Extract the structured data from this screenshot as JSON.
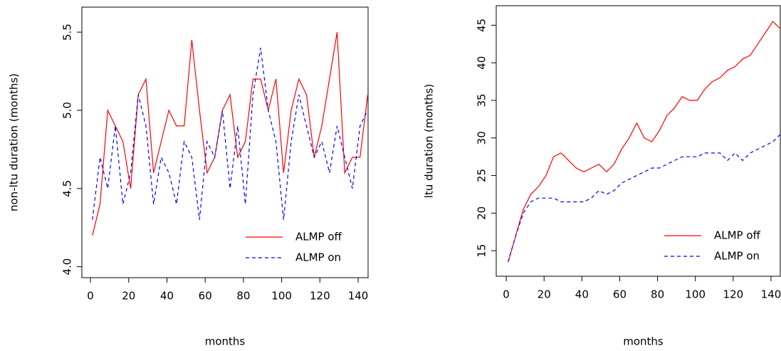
{
  "chart_data": [
    {
      "type": "line",
      "xlabel": "months",
      "ylabel": "non-ltu duration (months)",
      "x": [
        1,
        5,
        9,
        13,
        17,
        21,
        25,
        29,
        33,
        37,
        41,
        45,
        49,
        53,
        57,
        61,
        65,
        69,
        73,
        77,
        81,
        85,
        89,
        93,
        97,
        101,
        105,
        109,
        113,
        117,
        121,
        125,
        129,
        133,
        137,
        141,
        145
      ],
      "series": [
        {
          "name": "ALMP off",
          "color": "#ff0000",
          "linestyle": "solid",
          "values": [
            4.2,
            4.4,
            5.0,
            4.9,
            4.8,
            4.5,
            5.1,
            5.2,
            4.6,
            4.8,
            5.0,
            4.9,
            4.9,
            5.45,
            5.0,
            4.6,
            4.7,
            5.0,
            5.1,
            4.7,
            4.8,
            5.2,
            5.2,
            5.0,
            5.2,
            4.6,
            5.0,
            5.2,
            5.1,
            4.7,
            4.9,
            5.2,
            5.5,
            4.6,
            4.7,
            4.7,
            5.1
          ]
        },
        {
          "name": "ALMP on",
          "color": "#0000ff",
          "linestyle": "dashed",
          "values": [
            4.3,
            4.7,
            4.5,
            4.9,
            4.4,
            4.6,
            5.1,
            4.9,
            4.4,
            4.7,
            4.6,
            4.4,
            4.8,
            4.7,
            4.3,
            4.8,
            4.7,
            5.0,
            4.5,
            4.9,
            4.4,
            5.1,
            5.4,
            5.0,
            4.8,
            4.3,
            4.8,
            5.1,
            4.9,
            4.7,
            4.8,
            4.6,
            4.9,
            4.7,
            4.5,
            4.9,
            5.0
          ]
        }
      ],
      "xlim": [
        -4.5,
        145.2
      ],
      "xticks": [
        0,
        20,
        40,
        60,
        80,
        100,
        120,
        140
      ],
      "ylim": [
        3.93,
        5.66
      ],
      "yticks": [
        {
          "value": 4,
          "label": "4.0"
        },
        4.5,
        {
          "value": 5,
          "label": "5.0"
        },
        5.5
      ],
      "legend": "bottom-right"
    },
    {
      "type": "line",
      "xlabel": "months",
      "ylabel": "ltu duration (months)",
      "x": [
        1,
        5,
        9,
        13,
        17,
        21,
        25,
        29,
        33,
        37,
        41,
        45,
        49,
        53,
        57,
        61,
        65,
        69,
        73,
        77,
        81,
        85,
        89,
        93,
        97,
        101,
        105,
        109,
        113,
        117,
        121,
        125,
        129,
        133,
        137,
        141,
        145
      ],
      "series": [
        {
          "name": "ALMP off",
          "color": "#ff0000",
          "linestyle": "solid",
          "values": [
            13.5,
            17,
            20.5,
            22.5,
            23.5,
            25,
            27.5,
            28,
            27,
            26,
            25.5,
            26,
            26.5,
            25.5,
            26.5,
            28.5,
            30,
            32,
            30,
            29.5,
            31,
            33,
            34,
            35.5,
            35,
            35,
            36.5,
            37.5,
            38,
            39,
            39.5,
            40.5,
            41,
            42.5,
            44,
            45.5,
            44.5
          ]
        },
        {
          "name": "ALMP on",
          "color": "#0000ff",
          "linestyle": "dashed",
          "values": [
            13.5,
            17,
            20,
            21.5,
            22,
            22,
            22,
            21.5,
            21.5,
            21.5,
            21.5,
            22,
            23,
            22.5,
            23,
            24,
            24.5,
            25,
            25.5,
            26,
            26,
            26.5,
            27,
            27.5,
            27.5,
            27.5,
            28,
            28,
            28,
            27,
            28,
            27,
            28,
            28.5,
            29,
            29.5,
            30.5
          ]
        }
      ],
      "xlim": [
        -5.3,
        144.9
      ],
      "xticks": [
        0,
        20,
        40,
        60,
        80,
        100,
        120,
        140
      ],
      "ylim": [
        11.6,
        47.6
      ],
      "yticks": [
        15,
        20,
        25,
        30,
        35,
        40,
        45
      ],
      "legend": "bottom-right"
    }
  ]
}
